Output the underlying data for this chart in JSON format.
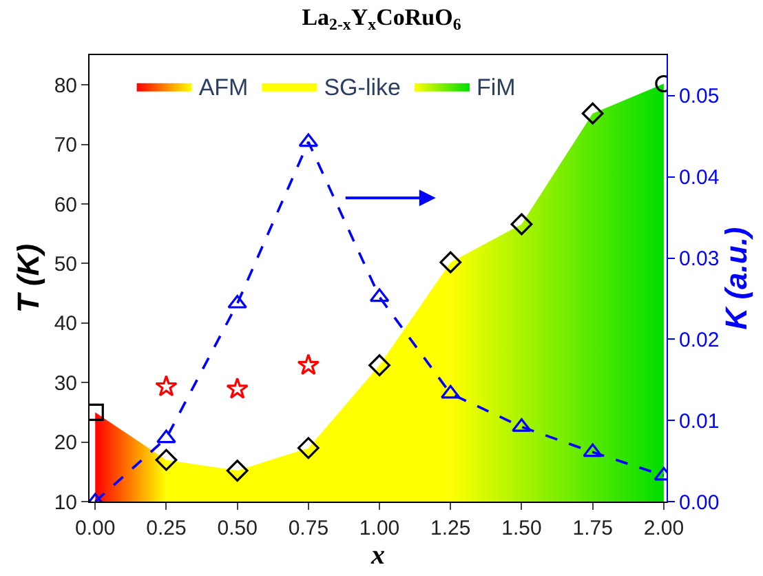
{
  "chart_data": {
    "type": "area",
    "title": "La$_{2-x}$Y$_{x}$CoRuO$_{6}$",
    "xlabel": "x",
    "ylabel": "T (K)",
    "y2label": "K (a.u.)",
    "xlim": [
      -0.02,
      2.01
    ],
    "xticks": [
      {
        "value": 0,
        "label": "0.00"
      },
      {
        "value": 0.25,
        "label": "0.25"
      },
      {
        "value": 0.5,
        "label": "0.50"
      },
      {
        "value": 0.75,
        "label": "0.75"
      },
      {
        "value": 1,
        "label": "1.00"
      },
      {
        "value": 1.25,
        "label": "1.25"
      },
      {
        "value": 1.5,
        "label": "1.50"
      },
      {
        "value": 1.75,
        "label": "1.75"
      },
      {
        "value": 2,
        "label": "2.00"
      }
    ],
    "ylim": [
      10,
      85
    ],
    "yticks": [
      10,
      20,
      30,
      40,
      50,
      60,
      70,
      80
    ],
    "y2lim": [
      0,
      0.055
    ],
    "y2ticks": [
      {
        "value": 0,
        "label": "0.00"
      },
      0.01,
      0.02,
      0.03,
      0.04,
      0.05
    ],
    "legend": "top",
    "series": [
      {
        "name": "AFM",
        "color": "#ff0000",
        "x": [
          0,
          0.25
        ],
        "values": [
          25,
          17.0
        ]
      },
      {
        "name": "SG-like",
        "color": "#ffff00",
        "x": [
          0.25,
          0.5,
          0.75,
          1.0,
          1.25
        ],
        "values": [
          17.0,
          15.2,
          19.0,
          32.9,
          50.2
        ]
      },
      {
        "name": "FiM",
        "color": "#00dd00",
        "x": [
          1.25,
          1.5,
          1.75,
          2.0
        ],
        "values": [
          50.2,
          56.6,
          75.2,
          80.2
        ]
      },
      {
        "type": "scatter",
        "marker": "square",
        "color": "#000000",
        "x": [
          0
        ],
        "values": [
          25
        ]
      },
      {
        "type": "scatter",
        "marker": "diamond",
        "color": "#000000",
        "x": [
          0.25,
          0.5,
          0.75,
          1.0,
          1.25,
          1.5,
          1.75
        ],
        "values": [
          17.0,
          15.2,
          19.0,
          32.9,
          50.2,
          56.6,
          75.2
        ]
      },
      {
        "type": "scatter",
        "marker": "circle",
        "color": "#000000",
        "x": [
          2.0
        ],
        "values": [
          80.2
        ]
      },
      {
        "type": "scatter",
        "marker": "star",
        "color": "#ff0000",
        "x": [
          0.25,
          0.5,
          0.75
        ],
        "values": [
          29.3,
          28.9,
          32.9
        ]
      },
      {
        "type": "line",
        "axis": "y2",
        "marker": "triangle",
        "line_style": "dashed",
        "color": "#0000ff",
        "x": [
          0,
          0.25,
          0.5,
          0.75,
          1.0,
          1.25,
          1.5,
          1.75,
          2.0
        ],
        "values": [
          0.0,
          0.0078,
          0.0244,
          0.0443,
          0.0252,
          0.0133,
          0.0092,
          0.0061,
          0.0032
        ]
      }
    ]
  }
}
